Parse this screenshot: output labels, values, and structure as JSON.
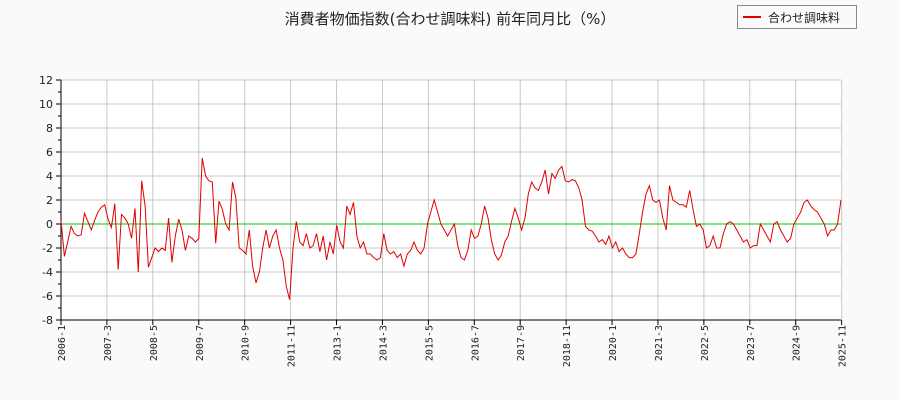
{
  "title": "消費者物価指数(合わせ調味料) 前年同月比（%）",
  "legend": {
    "label": "合わせ調味料",
    "color": "#e00000"
  },
  "colors": {
    "line": "#e00000",
    "zero_line": "#00cc00",
    "grid": "#c8c8c8",
    "background": "#fafafa",
    "plot_bg": "#ffffff"
  },
  "chart_data": {
    "type": "line",
    "title": "消費者物価指数(合わせ調味料) 前年同月比（%）",
    "xlabel": "",
    "ylabel": "",
    "ylim": [
      -8,
      12
    ],
    "yticks": [
      -8,
      -6,
      -4,
      -2,
      0,
      2,
      4,
      6,
      8,
      10,
      12
    ],
    "xtick_labels": [
      "2006-1",
      "2007-3",
      "2008-5",
      "2009-7",
      "2010-9",
      "2011-11",
      "2013-1",
      "2014-3",
      "2015-5",
      "2016-7",
      "2017-9",
      "2018-11",
      "2020-1",
      "2021-3",
      "2022-5",
      "2023-7",
      "2024-9",
      "2025-11"
    ],
    "grid": true,
    "legend_position": "top-right",
    "x_start": "2006-1",
    "x_step": "month",
    "series": [
      {
        "name": "合わせ調味料",
        "values": [
          0.3,
          -2.7,
          -1.5,
          -0.2,
          -0.8,
          -1.0,
          -0.9,
          0.9,
          0.2,
          -0.5,
          0.3,
          1.0,
          1.4,
          1.6,
          0.4,
          -0.3,
          1.7,
          -3.8,
          0.8,
          0.5,
          0.0,
          -1.2,
          1.3,
          -4.0,
          3.6,
          1.5,
          -3.6,
          -2.8,
          -2.0,
          -2.3,
          -2.0,
          -2.2,
          0.5,
          -3.2,
          -1.0,
          0.4,
          -0.5,
          -2.2,
          -1.0,
          -1.2,
          -1.5,
          -1.2,
          5.5,
          4.0,
          3.6,
          3.5,
          -1.6,
          1.9,
          1.2,
          0.0,
          -0.5,
          3.5,
          2.2,
          -2.0,
          -2.2,
          -2.5,
          -0.5,
          -3.5,
          -4.9,
          -4.0,
          -2.0,
          -0.5,
          -2.0,
          -1.0,
          -0.5,
          -2.0,
          -3.0,
          -5.2,
          -6.3,
          -2.0,
          0.2,
          -1.5,
          -1.8,
          -0.8,
          -2.0,
          -1.8,
          -0.8,
          -2.3,
          -1.0,
          -3.0,
          -1.5,
          -2.5,
          -0.1,
          -1.5,
          -2.0,
          1.5,
          0.8,
          1.8,
          -1.0,
          -2.0,
          -1.5,
          -2.5,
          -2.5,
          -2.8,
          -3.0,
          -2.8,
          -0.8,
          -2.2,
          -2.5,
          -2.3,
          -2.8,
          -2.5,
          -3.5,
          -2.5,
          -2.2,
          -1.5,
          -2.2,
          -2.5,
          -2.0,
          0.0,
          1.0,
          2.0,
          1.0,
          0.0,
          -0.5,
          -1.0,
          -0.5,
          0.0,
          -1.8,
          -2.8,
          -3.0,
          -2.2,
          -0.5,
          -1.2,
          -1.0,
          0.0,
          1.5,
          0.5,
          -1.3,
          -2.5,
          -3.0,
          -2.6,
          -1.5,
          -1.0,
          0.2,
          1.3,
          0.5,
          -0.5,
          0.5,
          2.5,
          3.5,
          3.0,
          2.8,
          3.5,
          4.5,
          2.5,
          4.2,
          3.8,
          4.5,
          4.8,
          3.6,
          3.5,
          3.7,
          3.6,
          3.0,
          2.0,
          -0.2,
          -0.5,
          -0.6,
          -1.0,
          -1.5,
          -1.3,
          -1.7,
          -1.0,
          -2.0,
          -1.5,
          -2.3,
          -2.0,
          -2.5,
          -2.8,
          -2.8,
          -2.5,
          -0.8,
          1.0,
          2.5,
          3.2,
          2.0,
          1.8,
          2.0,
          0.5,
          -0.5,
          3.2,
          2.0,
          1.8,
          1.6,
          1.6,
          1.4,
          2.8,
          1.2,
          -0.2,
          0.0,
          -0.5,
          -2.0,
          -1.8,
          -1.0,
          -2.0,
          -2.0,
          -0.8,
          0.0,
          0.2,
          0.0,
          -0.5,
          -1.0,
          -1.5,
          -1.3,
          -2.0,
          -1.8,
          -1.8,
          0.0,
          -0.5,
          -1.0,
          -1.5,
          0.0,
          0.2,
          -0.5,
          -1.0,
          -1.5,
          -1.2,
          0.0,
          0.5,
          1.0,
          1.8,
          2.0,
          1.5,
          1.2,
          1.0,
          0.5,
          0.0,
          -1.0,
          -0.5,
          -0.5,
          0.0,
          2.0
        ]
      }
    ]
  }
}
